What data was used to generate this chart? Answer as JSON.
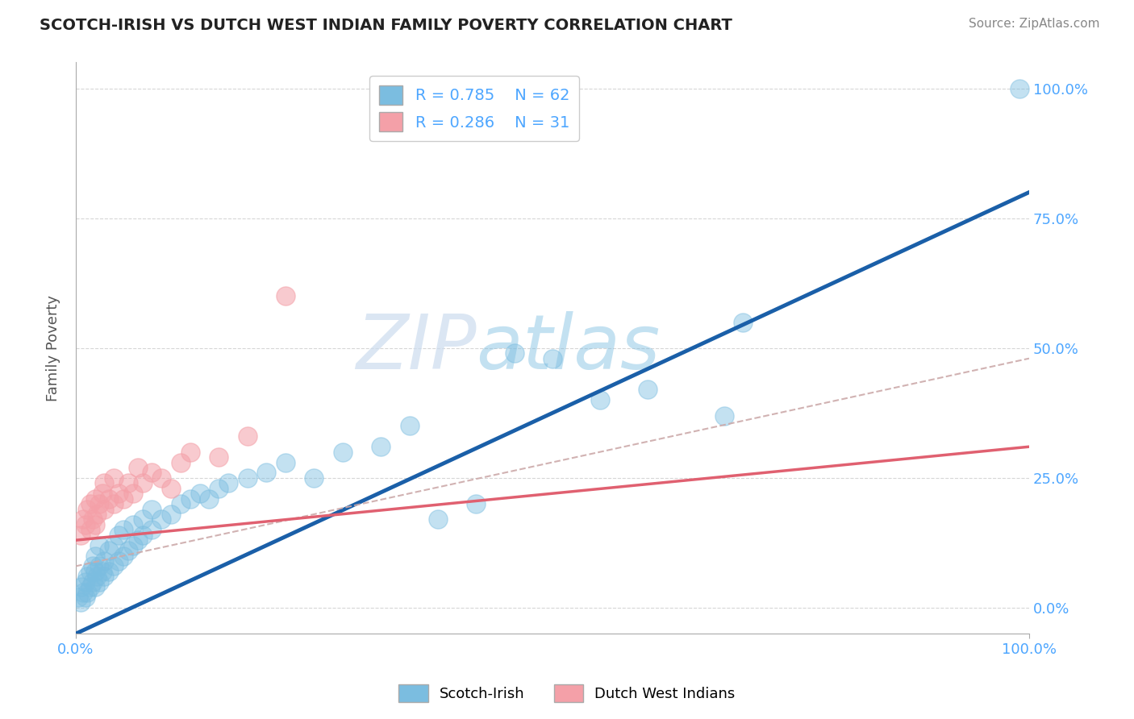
{
  "title": "SCOTCH-IRISH VS DUTCH WEST INDIAN FAMILY POVERTY CORRELATION CHART",
  "source_text": "Source: ZipAtlas.com",
  "xlabel": "",
  "ylabel": "Family Poverty",
  "xlim": [
    0,
    1
  ],
  "ylim": [
    -0.05,
    1.05
  ],
  "xtick_labels": [
    "0.0%",
    "100.0%"
  ],
  "xtick_positions": [
    0,
    1
  ],
  "ytick_labels": [
    "0.0%",
    "25.0%",
    "50.0%",
    "75.0%",
    "100.0%"
  ],
  "ytick_positions": [
    0,
    0.25,
    0.5,
    0.75,
    1.0
  ],
  "scotch_irish_color": "#7bbde0",
  "dutch_wi_color": "#f4a0a8",
  "scotch_irish_line_color": "#1a5fa8",
  "dutch_wi_line_color": "#e06070",
  "dutch_wi_dash_color": "#ccaaaa",
  "scotch_irish_R": 0.785,
  "scotch_irish_N": 62,
  "dutch_wi_R": 0.286,
  "dutch_wi_N": 31,
  "watermark_zip": "ZIP",
  "watermark_atlas": "atlas",
  "background_color": "#ffffff",
  "grid_color": "#cccccc",
  "right_tick_color": "#4da6ff",
  "legend_label_color": "#4da6ff",
  "scotch_irish_line_intercept": -0.05,
  "scotch_irish_line_slope": 0.85,
  "dutch_wi_solid_intercept": 0.13,
  "dutch_wi_solid_slope": 0.18,
  "dutch_wi_dash_intercept": 0.08,
  "dutch_wi_dash_slope": 0.4,
  "scotch_irish_scatter": [
    [
      0.003,
      0.02
    ],
    [
      0.005,
      0.01
    ],
    [
      0.006,
      0.04
    ],
    [
      0.008,
      0.03
    ],
    [
      0.01,
      0.02
    ],
    [
      0.01,
      0.05
    ],
    [
      0.012,
      0.03
    ],
    [
      0.012,
      0.06
    ],
    [
      0.015,
      0.04
    ],
    [
      0.015,
      0.07
    ],
    [
      0.018,
      0.05
    ],
    [
      0.018,
      0.08
    ],
    [
      0.02,
      0.04
    ],
    [
      0.02,
      0.07
    ],
    [
      0.02,
      0.1
    ],
    [
      0.022,
      0.06
    ],
    [
      0.025,
      0.05
    ],
    [
      0.025,
      0.08
    ],
    [
      0.025,
      0.12
    ],
    [
      0.028,
      0.07
    ],
    [
      0.03,
      0.06
    ],
    [
      0.03,
      0.09
    ],
    [
      0.035,
      0.07
    ],
    [
      0.035,
      0.11
    ],
    [
      0.04,
      0.08
    ],
    [
      0.04,
      0.12
    ],
    [
      0.045,
      0.09
    ],
    [
      0.045,
      0.14
    ],
    [
      0.05,
      0.1
    ],
    [
      0.05,
      0.15
    ],
    [
      0.055,
      0.11
    ],
    [
      0.06,
      0.12
    ],
    [
      0.06,
      0.16
    ],
    [
      0.065,
      0.13
    ],
    [
      0.07,
      0.14
    ],
    [
      0.07,
      0.17
    ],
    [
      0.08,
      0.15
    ],
    [
      0.08,
      0.19
    ],
    [
      0.09,
      0.17
    ],
    [
      0.1,
      0.18
    ],
    [
      0.11,
      0.2
    ],
    [
      0.12,
      0.21
    ],
    [
      0.13,
      0.22
    ],
    [
      0.14,
      0.21
    ],
    [
      0.15,
      0.23
    ],
    [
      0.16,
      0.24
    ],
    [
      0.18,
      0.25
    ],
    [
      0.2,
      0.26
    ],
    [
      0.22,
      0.28
    ],
    [
      0.25,
      0.25
    ],
    [
      0.28,
      0.3
    ],
    [
      0.32,
      0.31
    ],
    [
      0.35,
      0.35
    ],
    [
      0.38,
      0.17
    ],
    [
      0.42,
      0.2
    ],
    [
      0.46,
      0.49
    ],
    [
      0.5,
      0.48
    ],
    [
      0.55,
      0.4
    ],
    [
      0.6,
      0.42
    ],
    [
      0.68,
      0.37
    ],
    [
      0.7,
      0.55
    ],
    [
      0.99,
      1.0
    ]
  ],
  "dutch_wi_scatter": [
    [
      0.005,
      0.14
    ],
    [
      0.008,
      0.17
    ],
    [
      0.01,
      0.16
    ],
    [
      0.012,
      0.19
    ],
    [
      0.015,
      0.15
    ],
    [
      0.015,
      0.2
    ],
    [
      0.018,
      0.17
    ],
    [
      0.02,
      0.16
    ],
    [
      0.02,
      0.21
    ],
    [
      0.022,
      0.18
    ],
    [
      0.025,
      0.2
    ],
    [
      0.028,
      0.22
    ],
    [
      0.03,
      0.19
    ],
    [
      0.03,
      0.24
    ],
    [
      0.035,
      0.21
    ],
    [
      0.04,
      0.2
    ],
    [
      0.04,
      0.25
    ],
    [
      0.045,
      0.22
    ],
    [
      0.05,
      0.21
    ],
    [
      0.055,
      0.24
    ],
    [
      0.06,
      0.22
    ],
    [
      0.065,
      0.27
    ],
    [
      0.07,
      0.24
    ],
    [
      0.08,
      0.26
    ],
    [
      0.09,
      0.25
    ],
    [
      0.1,
      0.23
    ],
    [
      0.11,
      0.28
    ],
    [
      0.12,
      0.3
    ],
    [
      0.15,
      0.29
    ],
    [
      0.18,
      0.33
    ],
    [
      0.22,
      0.6
    ]
  ]
}
